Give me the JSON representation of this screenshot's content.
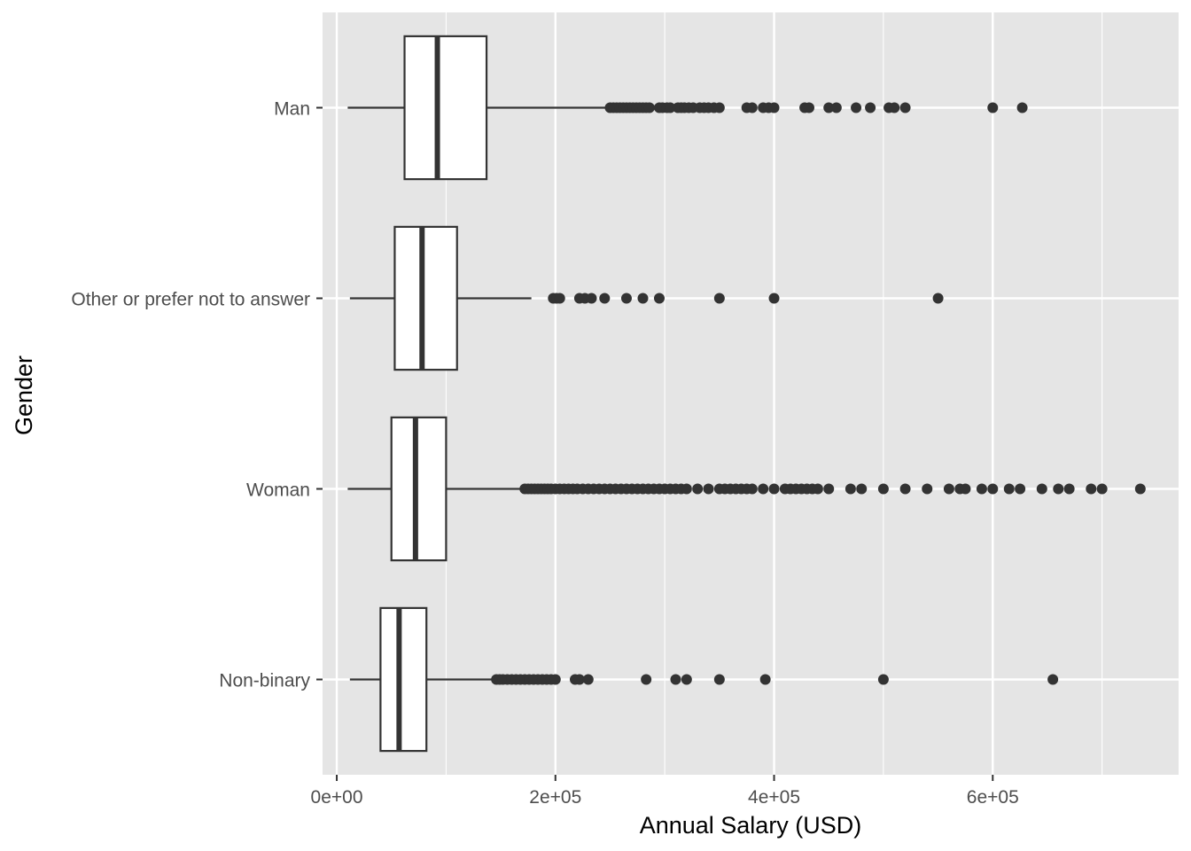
{
  "chart_data": {
    "type": "boxplot",
    "orientation": "horizontal",
    "title": "",
    "xlabel": "Annual Salary (USD)",
    "ylabel": "Gender",
    "xlim": [
      -13000,
      770000
    ],
    "xticks": [
      0,
      200000,
      400000,
      600000
    ],
    "xtick_labels": [
      "0e+00",
      "2e+05",
      "4e+05",
      "6e+05"
    ],
    "grid": true,
    "legend": "none",
    "colors": {
      "panel": "#e5e5e5",
      "grid": "#ffffff",
      "box_fill": "#ffffff",
      "stroke": "#333333",
      "outlier": "#333333"
    },
    "categories": [
      "Man",
      "Other or prefer not to answer",
      "Woman",
      "Non-binary"
    ],
    "boxes": [
      {
        "category": "Man",
        "whisker_low": 10000,
        "q1": 62000,
        "median": 92000,
        "q3": 137000,
        "whisker_high": 248000,
        "outliers": [
          250000,
          253000,
          256000,
          259000,
          262000,
          265000,
          268000,
          271000,
          274000,
          277000,
          280000,
          283000,
          286000,
          295000,
          298000,
          302000,
          305000,
          312000,
          315000,
          318000,
          322000,
          326000,
          332000,
          336000,
          340000,
          345000,
          350000,
          375000,
          380000,
          390000,
          395000,
          400000,
          428000,
          432000,
          450000,
          457000,
          475000,
          488000,
          505000,
          510000,
          520000,
          600000,
          627000
        ]
      },
      {
        "category": "Other or prefer not to answer",
        "whisker_low": 12000,
        "q1": 53000,
        "median": 78000,
        "q3": 110000,
        "whisker_high": 178000,
        "outliers": [
          198000,
          201000,
          204000,
          222000,
          227000,
          233000,
          245000,
          265000,
          280000,
          295000,
          350000,
          400000,
          550000
        ]
      },
      {
        "category": "Woman",
        "whisker_low": 10000,
        "q1": 50000,
        "median": 72000,
        "q3": 100000,
        "whisker_high": 170000,
        "outliers": [
          172000,
          175000,
          178000,
          181000,
          184000,
          187000,
          190000,
          193000,
          196000,
          200000,
          204000,
          208000,
          212000,
          216000,
          220000,
          225000,
          230000,
          235000,
          240000,
          245000,
          250000,
          255000,
          260000,
          265000,
          270000,
          275000,
          280000,
          285000,
          290000,
          295000,
          300000,
          305000,
          310000,
          315000,
          320000,
          330000,
          340000,
          350000,
          355000,
          360000,
          365000,
          370000,
          375000,
          380000,
          390000,
          400000,
          410000,
          415000,
          420000,
          425000,
          430000,
          435000,
          440000,
          450000,
          470000,
          480000,
          500000,
          520000,
          540000,
          560000,
          570000,
          575000,
          590000,
          600000,
          615000,
          625000,
          645000,
          660000,
          670000,
          690000,
          700000,
          735000
        ]
      },
      {
        "category": "Non-binary",
        "whisker_low": 12000,
        "q1": 40000,
        "median": 57000,
        "q3": 82000,
        "whisker_high": 144000,
        "outliers": [
          146000,
          149000,
          152000,
          156000,
          160000,
          164000,
          168000,
          172000,
          176000,
          180000,
          184000,
          188000,
          192000,
          196000,
          200000,
          218000,
          222000,
          230000,
          283000,
          310000,
          320000,
          350000,
          392000,
          500000,
          655000
        ]
      }
    ]
  }
}
